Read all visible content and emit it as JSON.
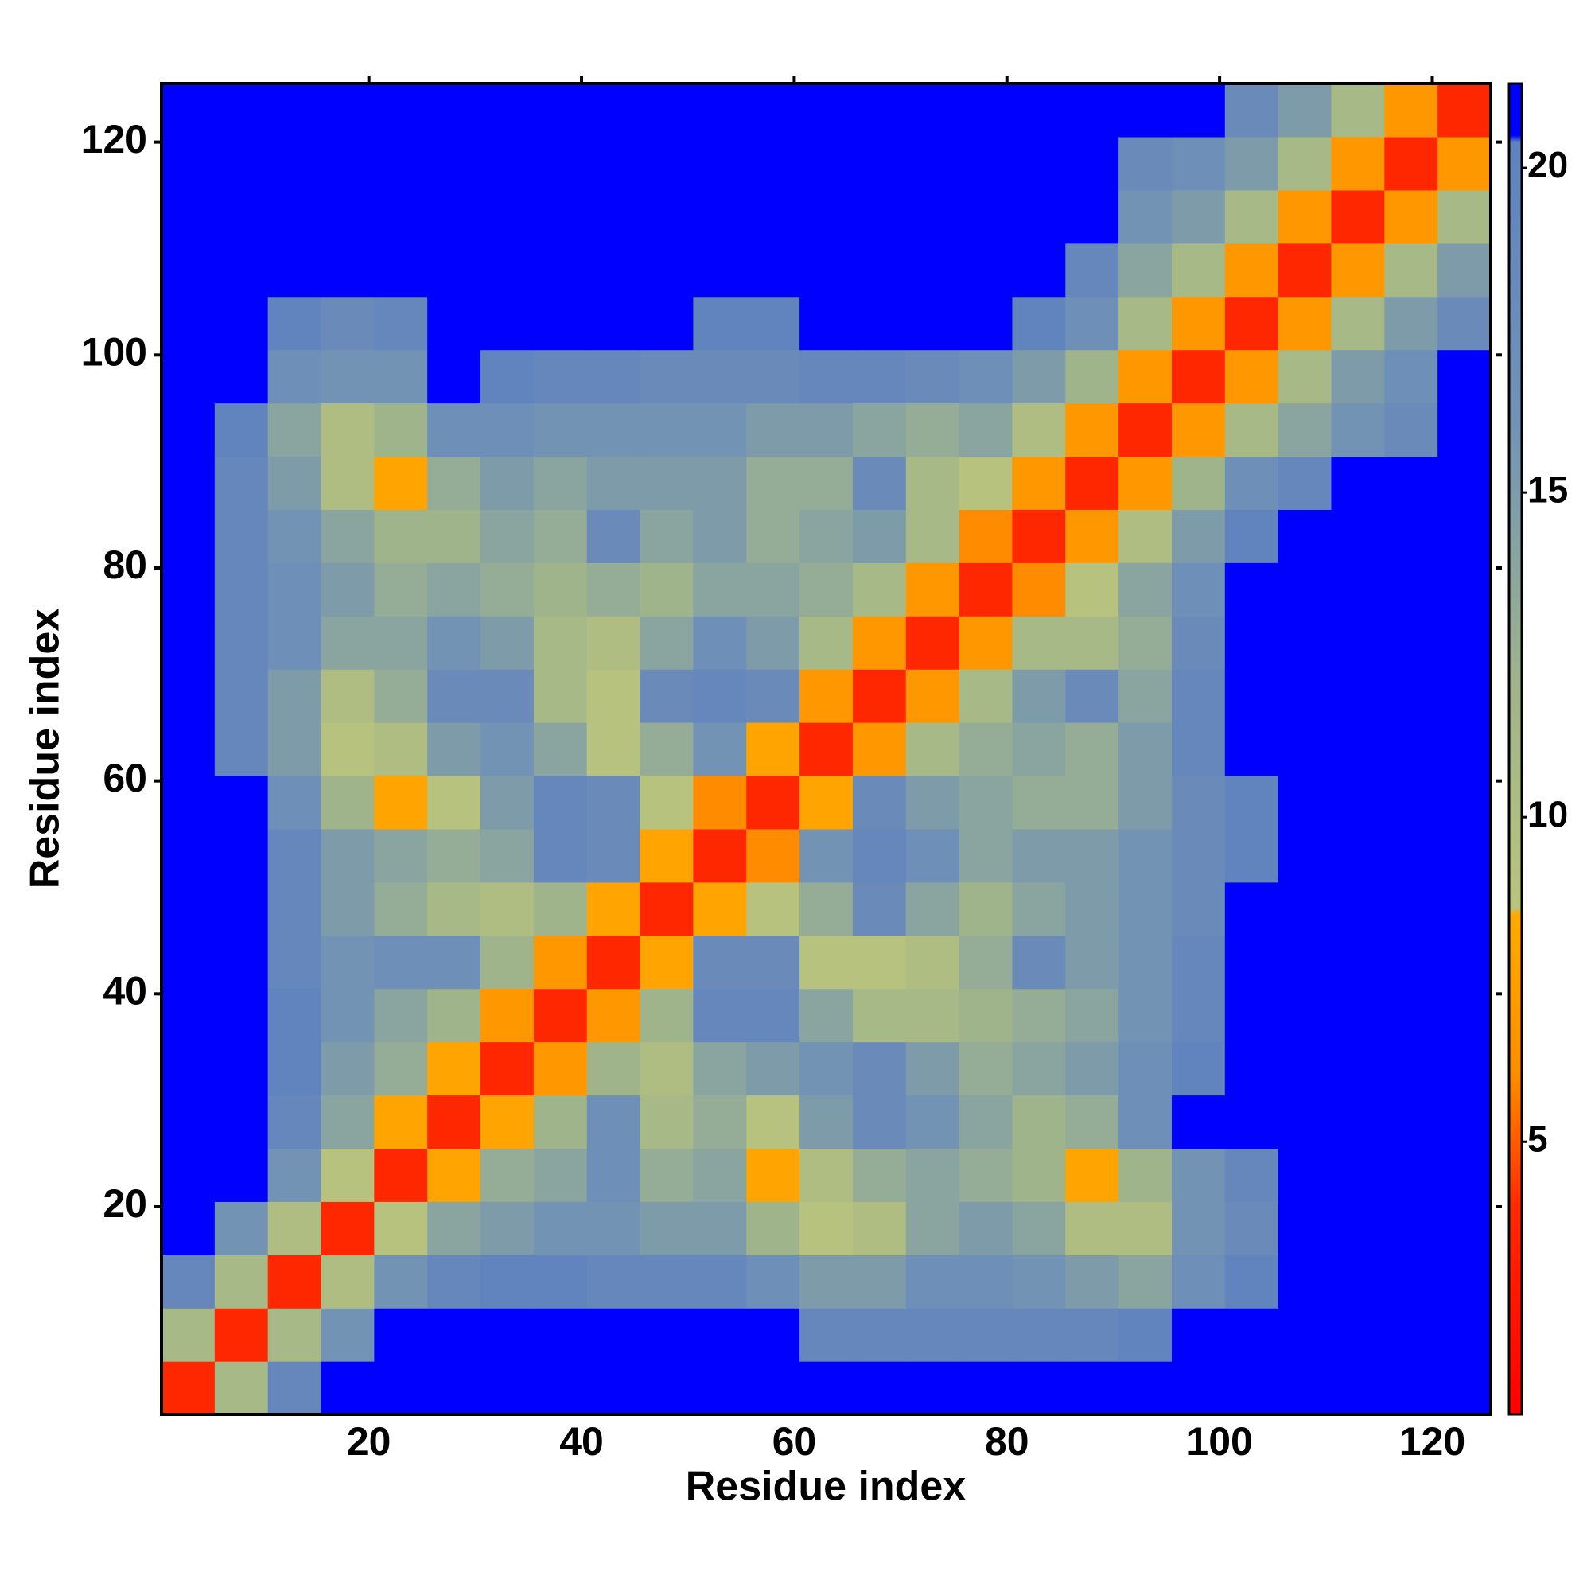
{
  "chart_data": {
    "type": "heatmap",
    "x_label": "Residue index",
    "y_label": "Residue index",
    "x": [
      3,
      8,
      13,
      18,
      23,
      28,
      33,
      38,
      43,
      48,
      53,
      58,
      63,
      68,
      73,
      78,
      83,
      88,
      93,
      98,
      103,
      108,
      113,
      118,
      123
    ],
    "y": [
      3,
      8,
      13,
      18,
      23,
      28,
      33,
      38,
      43,
      48,
      53,
      58,
      63,
      68,
      73,
      78,
      83,
      88,
      93,
      98,
      103,
      108,
      113,
      118,
      123
    ],
    "values": [
      [
        3.8,
        11,
        19,
        21,
        21,
        21,
        21,
        21,
        21,
        21,
        21,
        21,
        21,
        21,
        21,
        21,
        21,
        21,
        21,
        21,
        21,
        21,
        21,
        21,
        21
      ],
      [
        11,
        3.8,
        11,
        16,
        21,
        21,
        21,
        21,
        21,
        21,
        21,
        21,
        19,
        19,
        19,
        19,
        19,
        19,
        20,
        21,
        21,
        21,
        21,
        21,
        21
      ],
      [
        19,
        11,
        3.8,
        10,
        16,
        19,
        20,
        20,
        19,
        19,
        19,
        17,
        15,
        15,
        17,
        17,
        16,
        15,
        14,
        17,
        20,
        21,
        21,
        21,
        21
      ],
      [
        21,
        16,
        10,
        3.8,
        9,
        14,
        15,
        16,
        16,
        15,
        15,
        12,
        9,
        10,
        14,
        15,
        14,
        10,
        10,
        16,
        18,
        21,
        21,
        21,
        21
      ],
      [
        21,
        21,
        16,
        9,
        3.8,
        8,
        13,
        14,
        17,
        13,
        14,
        8,
        10,
        13,
        14,
        13,
        12,
        8,
        12,
        16,
        19,
        21,
        21,
        21,
        21
      ],
      [
        21,
        21,
        19,
        14,
        8,
        3.8,
        8,
        12,
        17,
        11,
        13,
        9,
        15,
        18,
        16,
        14,
        12,
        13,
        17,
        21,
        21,
        21,
        21,
        21,
        21
      ],
      [
        21,
        21,
        20,
        15,
        13,
        8,
        3.8,
        7,
        12,
        10,
        14,
        15,
        16,
        18,
        15,
        13,
        14,
        15,
        17,
        20,
        21,
        21,
        21,
        21,
        21
      ],
      [
        21,
        21,
        20,
        16,
        14,
        12,
        7,
        3.8,
        7,
        12,
        19,
        19,
        14,
        11,
        11,
        12,
        13,
        14,
        16,
        19,
        21,
        21,
        21,
        21,
        21
      ],
      [
        21,
        21,
        19,
        16,
        17,
        17,
        12,
        7,
        3.8,
        8,
        18,
        18,
        9,
        9,
        10,
        13,
        18,
        15,
        16,
        19,
        21,
        21,
        21,
        21,
        21
      ],
      [
        21,
        21,
        19,
        15,
        13,
        11,
        10,
        12,
        8,
        3.8,
        8,
        9,
        13,
        18,
        14,
        12,
        14,
        15,
        16,
        18,
        21,
        21,
        21,
        21,
        21
      ],
      [
        21,
        21,
        19,
        15,
        14,
        13,
        14,
        19,
        18,
        8,
        3.8,
        6,
        16,
        19,
        17,
        14,
        15,
        15,
        16,
        18,
        20,
        21,
        21,
        21,
        21
      ],
      [
        21,
        21,
        17,
        12,
        8,
        9,
        15,
        19,
        18,
        9,
        6,
        3.8,
        8,
        18,
        15,
        14,
        13,
        13,
        15,
        18,
        20,
        21,
        21,
        21,
        21
      ],
      [
        21,
        19,
        15,
        9,
        10,
        15,
        16,
        14,
        9,
        13,
        16,
        8,
        3.8,
        7,
        11,
        13,
        14,
        13,
        15,
        19,
        21,
        21,
        21,
        21,
        21
      ],
      [
        21,
        19,
        15,
        10,
        13,
        18,
        18,
        11,
        9,
        18,
        19,
        18,
        7,
        3.8,
        7,
        11,
        15,
        18,
        14,
        19,
        21,
        21,
        21,
        21,
        21
      ],
      [
        21,
        19,
        17,
        14,
        14,
        16,
        15,
        11,
        10,
        14,
        17,
        15,
        11,
        7,
        3.8,
        7,
        11,
        11,
        13,
        18,
        21,
        21,
        21,
        21,
        21
      ],
      [
        21,
        19,
        17,
        15,
        13,
        14,
        13,
        12,
        13,
        12,
        14,
        14,
        13,
        11,
        7,
        3.8,
        6,
        9,
        14,
        17,
        21,
        21,
        21,
        21,
        21
      ],
      [
        21,
        19,
        16,
        14,
        12,
        12,
        14,
        13,
        18,
        14,
        15,
        13,
        14,
        15,
        11,
        6,
        3.8,
        7,
        10,
        15,
        20,
        21,
        21,
        21,
        21
      ],
      [
        21,
        19,
        15,
        10,
        8,
        13,
        15,
        14,
        15,
        15,
        15,
        13,
        13,
        18,
        11,
        9,
        7,
        3.8,
        7,
        12,
        17,
        19,
        21,
        21,
        21
      ],
      [
        21,
        20,
        14,
        10,
        12,
        17,
        17,
        16,
        16,
        16,
        16,
        15,
        15,
        14,
        13,
        14,
        10,
        7,
        3.8,
        7,
        11,
        14,
        16,
        18,
        21
      ],
      [
        21,
        21,
        17,
        16,
        16,
        21,
        20,
        19,
        19,
        18,
        18,
        18,
        19,
        19,
        18,
        17,
        15,
        12,
        7,
        3.8,
        7,
        11,
        15,
        17,
        21
      ],
      [
        21,
        21,
        20,
        18,
        19,
        21,
        21,
        21,
        21,
        21,
        20,
        20,
        21,
        21,
        21,
        21,
        20,
        17,
        11,
        7,
        3.8,
        7,
        11,
        15,
        18
      ],
      [
        21,
        21,
        21,
        21,
        21,
        21,
        21,
        21,
        21,
        21,
        21,
        21,
        21,
        21,
        21,
        21,
        21,
        19,
        14,
        11,
        7,
        3.8,
        7,
        11,
        15
      ],
      [
        21,
        21,
        21,
        21,
        21,
        21,
        21,
        21,
        21,
        21,
        21,
        21,
        21,
        21,
        21,
        21,
        21,
        21,
        16,
        15,
        11,
        7,
        3.8,
        7,
        11
      ],
      [
        21,
        21,
        21,
        21,
        21,
        21,
        21,
        21,
        21,
        21,
        21,
        21,
        21,
        21,
        21,
        21,
        21,
        21,
        18,
        17,
        15,
        11,
        7,
        3.8,
        7
      ],
      [
        21,
        21,
        21,
        21,
        21,
        21,
        21,
        21,
        21,
        21,
        21,
        21,
        21,
        21,
        21,
        21,
        21,
        21,
        21,
        21,
        18,
        15,
        11,
        7,
        3.8
      ]
    ],
    "xlim": [
      0.5,
      125.5
    ],
    "ylim": [
      0.5,
      125.5
    ],
    "xticks": [
      20,
      40,
      60,
      80,
      100,
      120
    ],
    "yticks": [
      20,
      40,
      60,
      80,
      100,
      120
    ],
    "clim": [
      0.8,
      21.3
    ],
    "cticks": [
      5,
      10,
      15,
      20
    ],
    "colorscale": [
      [
        0.8,
        "#ff0000"
      ],
      [
        4,
        "#ff2a00"
      ],
      [
        6,
        "#ff8c00"
      ],
      [
        8.5,
        "#ffaa00"
      ],
      [
        8.6,
        "#b9c47c"
      ],
      [
        12,
        "#a0b48c"
      ],
      [
        16,
        "#7393b4"
      ],
      [
        20.4,
        "#5f82bf"
      ],
      [
        20.5,
        "#0000ff"
      ],
      [
        21.3,
        "#0000ff"
      ]
    ]
  }
}
